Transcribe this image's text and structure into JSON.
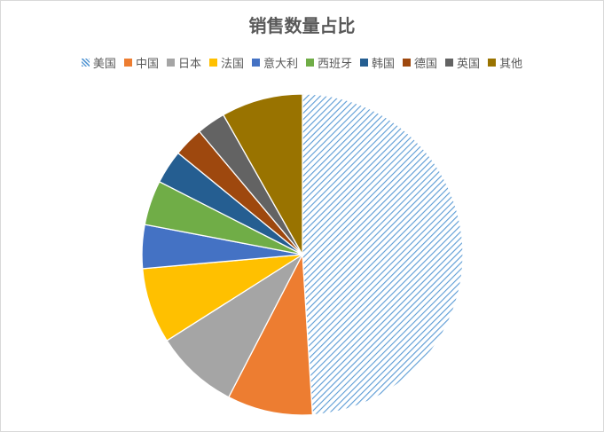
{
  "chart_data": {
    "type": "pie",
    "title": "销售数量占比",
    "legend_position": "top",
    "categories": [
      "美国",
      "中国",
      "日本",
      "法国",
      "意大利",
      "西班牙",
      "韩国",
      "德国",
      "英国",
      "其他"
    ],
    "values": [
      49.0,
      8.6,
      8.4,
      7.6,
      4.4,
      4.5,
      3.4,
      3.0,
      2.9,
      8.2
    ],
    "colors": [
      "#5B9BD5",
      "#ED7D31",
      "#A5A5A5",
      "#FFC000",
      "#4472C4",
      "#70AD47",
      "#255E91",
      "#9E480E",
      "#636363",
      "#997300"
    ],
    "patterns": [
      "diagonal-stripes",
      "solid",
      "solid",
      "solid",
      "solid",
      "solid",
      "solid",
      "solid",
      "solid",
      "solid"
    ]
  }
}
